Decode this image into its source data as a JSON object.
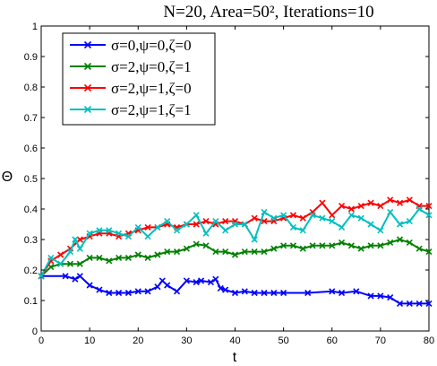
{
  "chart_data": {
    "type": "line",
    "title": "N=20, Area=50², Iterations=10",
    "xlabel": "t",
    "ylabel": "Θ",
    "xlim": [
      0,
      80
    ],
    "ylim": [
      0,
      1
    ],
    "xticks": [
      0,
      10,
      20,
      30,
      40,
      50,
      60,
      70,
      80
    ],
    "yticks": [
      0,
      0.1,
      0.2,
      0.3,
      0.4,
      0.5,
      0.6,
      0.7,
      0.8,
      0.9,
      1
    ],
    "grid": false,
    "legend_position": "top-left",
    "marker": "x",
    "series": [
      {
        "name": "σ=0,ψ=0,ζ=0",
        "color": "#0000ff",
        "x": [
          0,
          5,
          7,
          8,
          10,
          12,
          14,
          16,
          18,
          20,
          22,
          24,
          25,
          26,
          28,
          30,
          32,
          33,
          35,
          36,
          37,
          38,
          40,
          42,
          44,
          46,
          48,
          50,
          55,
          60,
          62,
          65,
          68,
          70,
          72,
          74,
          76,
          78,
          80
        ],
        "y": [
          0.18,
          0.18,
          0.17,
          0.18,
          0.15,
          0.135,
          0.125,
          0.125,
          0.125,
          0.13,
          0.13,
          0.145,
          0.165,
          0.15,
          0.13,
          0.165,
          0.16,
          0.165,
          0.16,
          0.17,
          0.14,
          0.135,
          0.125,
          0.13,
          0.125,
          0.125,
          0.125,
          0.125,
          0.125,
          0.13,
          0.125,
          0.13,
          0.115,
          0.115,
          0.11,
          0.09,
          0.09,
          0.09,
          0.09
        ]
      },
      {
        "name": "σ=2,ψ=0,ζ=1",
        "color": "#008000",
        "x": [
          0,
          2,
          4,
          6,
          8,
          10,
          12,
          14,
          16,
          18,
          20,
          22,
          24,
          26,
          28,
          30,
          32,
          34,
          36,
          38,
          40,
          42,
          44,
          46,
          48,
          50,
          52,
          54,
          56,
          58,
          60,
          62,
          64,
          66,
          68,
          70,
          72,
          74,
          76,
          78,
          80
        ],
        "y": [
          0.18,
          0.21,
          0.22,
          0.22,
          0.22,
          0.24,
          0.24,
          0.23,
          0.24,
          0.24,
          0.25,
          0.24,
          0.25,
          0.26,
          0.26,
          0.27,
          0.285,
          0.28,
          0.26,
          0.26,
          0.25,
          0.26,
          0.26,
          0.26,
          0.27,
          0.28,
          0.28,
          0.27,
          0.28,
          0.28,
          0.28,
          0.29,
          0.28,
          0.27,
          0.28,
          0.28,
          0.29,
          0.3,
          0.29,
          0.27,
          0.26
        ]
      },
      {
        "name": "σ=2,ψ=1,ζ=0",
        "color": "#ff0000",
        "x": [
          0,
          2,
          4,
          6,
          8,
          10,
          12,
          14,
          16,
          18,
          20,
          22,
          24,
          26,
          28,
          30,
          32,
          34,
          36,
          38,
          40,
          42,
          44,
          46,
          48,
          50,
          52,
          54,
          56,
          58,
          60,
          62,
          64,
          66,
          68,
          70,
          72,
          74,
          76,
          78,
          80
        ],
        "y": [
          0.18,
          0.23,
          0.25,
          0.27,
          0.3,
          0.31,
          0.32,
          0.32,
          0.31,
          0.32,
          0.33,
          0.34,
          0.34,
          0.35,
          0.34,
          0.35,
          0.35,
          0.36,
          0.35,
          0.36,
          0.36,
          0.35,
          0.37,
          0.36,
          0.36,
          0.37,
          0.38,
          0.37,
          0.39,
          0.42,
          0.38,
          0.41,
          0.4,
          0.41,
          0.42,
          0.41,
          0.43,
          0.42,
          0.43,
          0.41,
          0.41
        ]
      },
      {
        "name": "σ=2,ψ=1,ζ=1",
        "color": "#00bfbf",
        "x": [
          0,
          2,
          4,
          6,
          7,
          8,
          10,
          12,
          14,
          16,
          18,
          20,
          22,
          24,
          26,
          28,
          30,
          32,
          34,
          36,
          38,
          40,
          42,
          44,
          46,
          48,
          50,
          52,
          54,
          56,
          58,
          60,
          62,
          64,
          66,
          68,
          70,
          72,
          74,
          76,
          78,
          80
        ],
        "y": [
          0.18,
          0.24,
          0.22,
          0.26,
          0.3,
          0.27,
          0.32,
          0.33,
          0.33,
          0.32,
          0.31,
          0.34,
          0.31,
          0.34,
          0.36,
          0.33,
          0.35,
          0.38,
          0.32,
          0.36,
          0.33,
          0.35,
          0.35,
          0.3,
          0.39,
          0.37,
          0.38,
          0.34,
          0.33,
          0.38,
          0.37,
          0.36,
          0.34,
          0.38,
          0.37,
          0.35,
          0.33,
          0.39,
          0.35,
          0.36,
          0.4,
          0.38
        ]
      }
    ]
  }
}
